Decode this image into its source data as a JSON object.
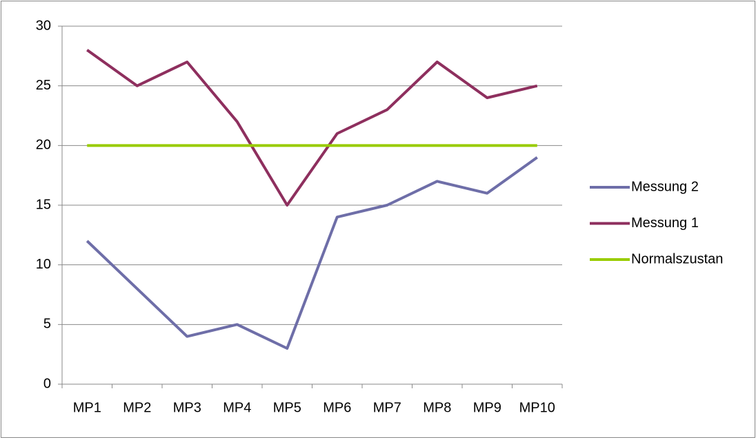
{
  "chart_data": {
    "type": "line",
    "categories": [
      "MP1",
      "MP2",
      "MP3",
      "MP4",
      "MP5",
      "MP6",
      "MP7",
      "MP8",
      "MP9",
      "MP10"
    ],
    "series": [
      {
        "name": "Messung 2",
        "color": "#6e6ea8",
        "values": [
          12,
          8,
          4,
          5,
          3,
          14,
          15,
          17,
          16,
          19
        ]
      },
      {
        "name": "Messung 1",
        "color": "#8e2f5e",
        "values": [
          28,
          25,
          27,
          22,
          15,
          21,
          23,
          27,
          24,
          25
        ]
      },
      {
        "name": "Normalszustan",
        "color": "#99cc00",
        "values": [
          20,
          20,
          20,
          20,
          20,
          20,
          20,
          20,
          20,
          20
        ]
      }
    ],
    "ylim": [
      0,
      30
    ],
    "yticks": [
      0,
      5,
      10,
      15,
      20,
      25,
      30
    ],
    "grid": true,
    "legend": "right"
  }
}
